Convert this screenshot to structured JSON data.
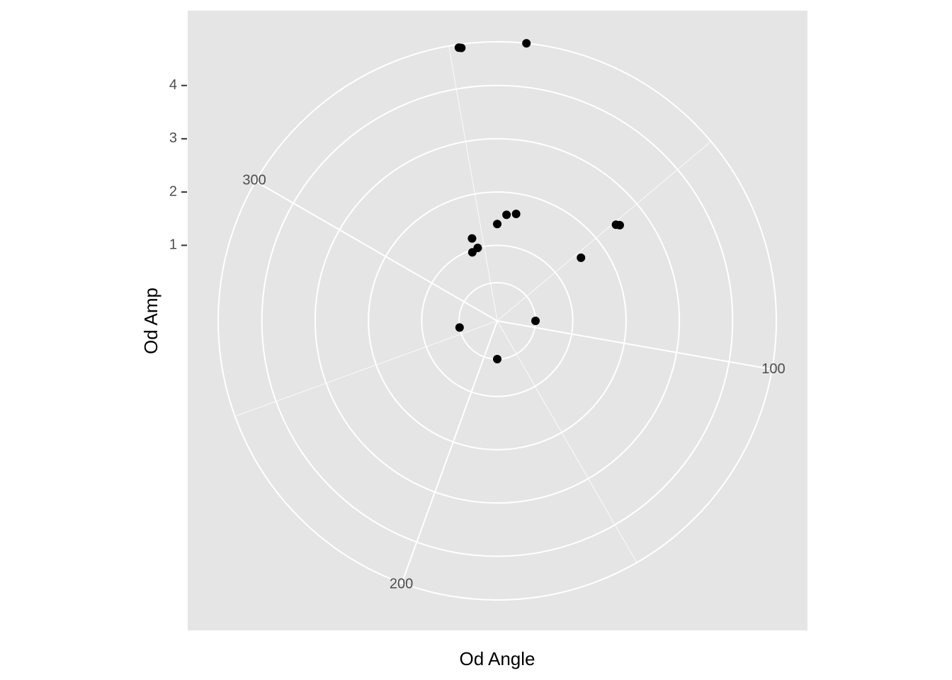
{
  "chart_data": {
    "type": "scatter",
    "coord": "polar",
    "title": "",
    "xlabel": "Od Angle",
    "ylabel": "Od Amp",
    "theta_range": [
      0,
      360
    ],
    "theta_direction": "clockwise",
    "theta_start": "top",
    "theta_breaks": [
      100,
      200,
      300
    ],
    "theta_minor_breaks": [
      50,
      150,
      250,
      350
    ],
    "r_breaks": [
      1,
      2,
      3,
      4
    ],
    "r_range": [
      0.3,
      4.82
    ],
    "grid": true,
    "legend": "none",
    "points": [
      {
        "x": 6,
        "y": 4.82
      },
      {
        "x": 352,
        "y": 4.76
      },
      {
        "x": 352.5,
        "y": 4.75
      },
      {
        "x": 51,
        "y": 2.45
      },
      {
        "x": 52,
        "y": 2.5
      },
      {
        "x": 53,
        "y": 1.55
      },
      {
        "x": 5,
        "y": 1.58
      },
      {
        "x": 10,
        "y": 1.62
      },
      {
        "x": 0,
        "y": 1.4
      },
      {
        "x": 343,
        "y": 1.2
      },
      {
        "x": 345,
        "y": 1.0
      },
      {
        "x": 340,
        "y": 0.95
      },
      {
        "x": 260,
        "y": 0.3
      },
      {
        "x": 90,
        "y": 0.3
      },
      {
        "x": 180,
        "y": 0.3
      }
    ]
  },
  "colors": {
    "panel_background": "#e5e5e5",
    "grid": "#ffffff",
    "point": "#000000",
    "tick_label": "#4d4d4d"
  }
}
